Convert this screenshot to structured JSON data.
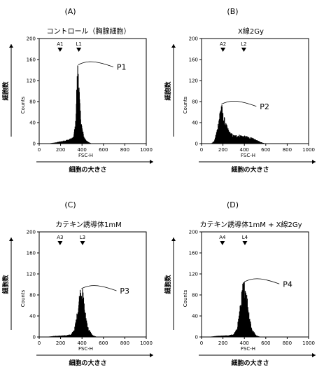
{
  "chart_data": [
    {
      "type": "histogram",
      "panel_label": "(A)",
      "title": "コントロール（胸腺細胞）",
      "xlabel": "FSC-H",
      "ylabel": "Counts",
      "outer_xlabel": "細胞の大きさ",
      "outer_ylabel": "細胞数",
      "xlim": [
        0,
        1000
      ],
      "ylim": [
        0,
        200
      ],
      "xticks": [
        0,
        200,
        400,
        600,
        800,
        1000
      ],
      "yticks": [
        0,
        40,
        80,
        120,
        160,
        200
      ],
      "markers": [
        {
          "label": "A1",
          "x": 195
        },
        {
          "label": "L1",
          "x": 370
        }
      ],
      "peak_label": "P1",
      "peak": [
        365,
        150
      ],
      "distribution": {
        "x": [
          80,
          150,
          220,
          280,
          320,
          340,
          350,
          360,
          365,
          370,
          380,
          400,
          420,
          450,
          480,
          500
        ],
        "y": [
          0,
          2,
          5,
          8,
          12,
          40,
          100,
          145,
          150,
          120,
          70,
          30,
          12,
          4,
          1,
          0
        ]
      }
    },
    {
      "type": "histogram",
      "panel_label": "(B)",
      "title": "X線2Gy",
      "xlabel": "FSC-H",
      "ylabel": "Counts",
      "outer_xlabel": "細胞の大きさ",
      "outer_ylabel": "細胞数",
      "xlim": [
        0,
        1000
      ],
      "ylim": [
        0,
        200
      ],
      "xticks": [
        0,
        200,
        400,
        600,
        800,
        1000
      ],
      "yticks": [
        0,
        40,
        80,
        120,
        160,
        200
      ],
      "markers": [
        {
          "label": "A2",
          "x": 200
        },
        {
          "label": "L2",
          "x": 395
        }
      ],
      "peak_label": "P2",
      "peak": [
        185,
        75
      ],
      "distribution": {
        "x": [
          90,
          120,
          150,
          175,
          185,
          200,
          230,
          260,
          300,
          350,
          400,
          450,
          500,
          550,
          600
        ],
        "y": [
          0,
          5,
          30,
          65,
          75,
          55,
          35,
          22,
          15,
          16,
          14,
          12,
          8,
          3,
          0
        ]
      }
    },
    {
      "type": "histogram",
      "panel_label": "(C)",
      "title": "カテキン誘導体1mM",
      "xlabel": "FSC-H",
      "ylabel": "Counts",
      "outer_xlabel": "細胞の大きさ",
      "outer_ylabel": "細胞数",
      "xlim": [
        0,
        1000
      ],
      "ylim": [
        0,
        200
      ],
      "xticks": [
        0,
        200,
        400,
        600,
        800,
        1000
      ],
      "yticks": [
        0,
        40,
        80,
        120,
        160,
        200
      ],
      "markers": [
        {
          "label": "A3",
          "x": 195
        },
        {
          "label": "L3",
          "x": 405
        }
      ],
      "peak_label": "P3",
      "peak": [
        395,
        92
      ],
      "distribution": {
        "x": [
          60,
          150,
          250,
          300,
          330,
          360,
          380,
          395,
          410,
          430,
          460,
          500,
          540
        ],
        "y": [
          0,
          2,
          3,
          5,
          15,
          50,
          85,
          92,
          80,
          45,
          15,
          3,
          0
        ]
      }
    },
    {
      "type": "histogram",
      "panel_label": "(D)",
      "title": "カテキン誘導体1mM + X線2Gy",
      "xlabel": "FSC-H",
      "ylabel": "Counts",
      "outer_xlabel": "細胞の大きさ",
      "outer_ylabel": "細胞数",
      "xlim": [
        0,
        1000
      ],
      "ylim": [
        0,
        200
      ],
      "xticks": [
        0,
        200,
        400,
        600,
        800,
        1000
      ],
      "yticks": [
        0,
        40,
        80,
        120,
        160,
        200
      ],
      "markers": [
        {
          "label": "A4",
          "x": 195
        },
        {
          "label": "L4",
          "x": 405
        }
      ],
      "peak_label": "P4",
      "peak": [
        400,
        105
      ],
      "distribution": {
        "x": [
          60,
          150,
          250,
          300,
          330,
          360,
          385,
          400,
          415,
          440,
          470,
          510,
          550
        ],
        "y": [
          0,
          2,
          3,
          5,
          15,
          55,
          95,
          105,
          90,
          50,
          15,
          3,
          0
        ]
      }
    }
  ]
}
